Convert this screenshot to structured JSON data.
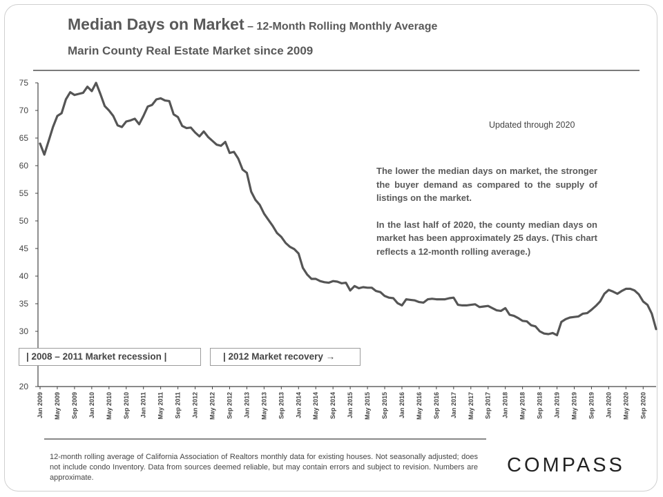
{
  "header": {
    "title_main": "Median Days on Market",
    "title_sub": " – 12-Month Rolling Monthly Average",
    "subtitle": "Marin County Real Estate Market since 2009"
  },
  "annotations": {
    "updated": "Updated through 2020",
    "note_p1": "The lower the median days on market, the stronger the buyer demand as compared to the supply of listings on the market.",
    "note_p2": "In the last half of 2020, the county median days on market has been approximately 25 days. (This chart reflects a 12-month rolling average.)",
    "box_recession": "|   2008 – 2011 Market recession   |",
    "box_recovery": "| 2012 Market recovery →"
  },
  "footer": {
    "footnote": "12-month rolling average of California Association of Realtors monthly data for existing houses. Not seasonally adjusted; does not include condo Inventory. Data from sources deemed reliable, but may contain errors and subject to revision. Numbers are approximate.",
    "logo": "COMPASS"
  },
  "chart_data": {
    "type": "line",
    "title": "Median Days on Market",
    "ylim": [
      20,
      75
    ],
    "yticks": [
      20,
      30,
      35,
      40,
      45,
      50,
      55,
      60,
      65,
      70,
      75
    ],
    "grid": false,
    "line_color": "#555555",
    "x_start": "2009-01",
    "x_end": "2020-12",
    "x_tick_labels": [
      "Jan 2009",
      "May 2009",
      "Sep 2009",
      "Jan 2010",
      "May 2010",
      "Sep 2010",
      "Jan 2011",
      "May 2011",
      "Sep 2011",
      "Jan 2012",
      "May 2012",
      "Sep 2012",
      "Jan 2013",
      "May 2013",
      "Sep 2013",
      "Jan 2014",
      "May 2014",
      "Sep 2014",
      "Jan 2015",
      "May 2015",
      "Sep 2015",
      "Jan 2016",
      "May 2016",
      "Sep 2016",
      "Jan 2017",
      "May 2017",
      "Sep 2017",
      "Jan 2018",
      "May 2018",
      "Sep 2018",
      "Jan 2019",
      "May 2019",
      "Sep 2019",
      "Jan 2020",
      "May 2020",
      "Sep 2020"
    ],
    "series": [
      {
        "values": [
          64.0,
          62.0,
          64.5,
          67.0,
          69.0,
          69.5,
          72.0,
          73.3,
          72.8,
          73.0,
          73.2,
          74.3,
          73.5,
          75.0,
          73.0,
          70.8,
          70.0,
          69.0,
          67.3,
          67.0,
          68.0,
          68.2,
          68.5,
          67.5,
          69.0,
          70.7,
          71.0,
          72.0,
          72.2,
          71.8,
          71.7,
          69.3,
          68.8,
          67.2,
          66.8,
          66.9,
          66.0,
          65.3,
          66.2,
          65.2,
          64.5,
          63.8,
          63.6,
          64.3,
          62.3,
          62.5,
          61.3,
          59.3,
          58.7,
          55.3,
          53.8,
          52.9,
          51.3,
          50.2,
          49.1,
          47.8,
          47.1,
          46.0,
          45.3,
          44.9,
          44.1,
          41.5,
          40.3,
          39.5,
          39.5,
          39.1,
          38.9,
          38.8,
          39.1,
          39.0,
          38.7,
          38.8,
          37.4,
          38.2,
          37.8,
          38.0,
          37.9,
          37.9,
          37.3,
          37.1,
          36.4,
          36.1,
          36.0,
          35.1,
          34.7,
          35.8,
          35.7,
          35.6,
          35.3,
          35.2,
          35.8,
          35.9,
          35.8,
          35.8,
          35.8,
          36.0,
          36.1,
          34.8,
          34.7,
          34.7,
          34.8,
          34.9,
          34.4,
          34.5,
          34.6,
          34.2,
          33.8,
          33.7,
          34.2,
          33.0,
          32.8,
          32.4,
          31.9,
          31.8,
          31.1,
          30.9,
          30.0,
          29.6,
          29.5,
          29.7,
          29.3,
          31.7,
          32.2,
          32.5,
          32.6,
          32.7,
          33.2,
          33.3,
          33.9,
          34.6,
          35.4,
          36.8,
          37.5,
          37.2,
          36.8,
          37.3,
          37.7,
          37.7,
          37.4,
          36.7,
          35.4,
          34.8,
          33.2,
          30.4
        ]
      }
    ]
  }
}
